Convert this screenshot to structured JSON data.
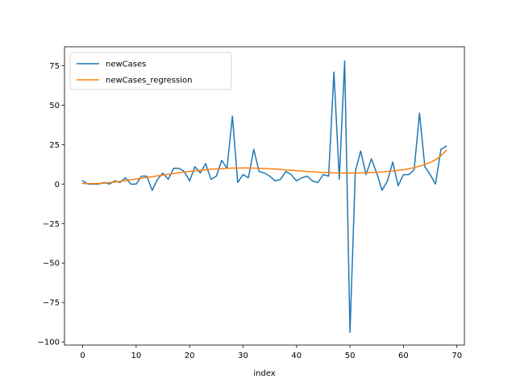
{
  "chart_data": {
    "type": "line",
    "title": "",
    "xlabel": "index",
    "ylabel": "",
    "xlim": [
      -3.4,
      71.4
    ],
    "ylim": [
      -102,
      87
    ],
    "xticks": [
      0,
      10,
      20,
      30,
      40,
      50,
      60,
      70
    ],
    "yticks": [
      -100,
      -75,
      -50,
      -25,
      0,
      25,
      50,
      75
    ],
    "grid": false,
    "legend": "top-left",
    "series": [
      {
        "name": "newCases",
        "color": "#1f77b4",
        "x": [
          0,
          1,
          2,
          3,
          4,
          5,
          6,
          7,
          8,
          9,
          10,
          11,
          12,
          13,
          14,
          15,
          16,
          17,
          18,
          19,
          20,
          21,
          22,
          23,
          24,
          25,
          26,
          27,
          28,
          29,
          30,
          31,
          32,
          33,
          34,
          35,
          36,
          37,
          38,
          39,
          40,
          41,
          42,
          43,
          44,
          45,
          46,
          47,
          48,
          49,
          50,
          51,
          52,
          53,
          54,
          55,
          56,
          57,
          58,
          59,
          60,
          61,
          62,
          63,
          64,
          65,
          66,
          67,
          68
        ],
        "y": [
          2,
          0,
          0,
          0,
          1,
          0,
          2,
          1,
          4,
          0,
          0,
          5,
          5,
          -4,
          3,
          7,
          3,
          10,
          10,
          8,
          2,
          11,
          7,
          13,
          3,
          5,
          15,
          10,
          43,
          1,
          6,
          4,
          22,
          8,
          7,
          5,
          2,
          3,
          8,
          6,
          2,
          4,
          5,
          2,
          1,
          6,
          5,
          71,
          3,
          78,
          -94,
          8,
          21,
          6,
          16,
          7,
          -4,
          2,
          14,
          -1,
          6,
          6,
          9,
          45,
          11,
          6,
          0,
          22,
          24
        ]
      },
      {
        "name": "newCases_regression",
        "color": "#ff7f0e",
        "x": [
          0,
          1,
          2,
          3,
          4,
          5,
          6,
          7,
          8,
          9,
          10,
          11,
          12,
          13,
          14,
          15,
          16,
          17,
          18,
          19,
          20,
          21,
          22,
          23,
          24,
          25,
          26,
          27,
          28,
          29,
          30,
          31,
          32,
          33,
          34,
          35,
          36,
          37,
          38,
          39,
          40,
          41,
          42,
          43,
          44,
          45,
          46,
          47,
          48,
          49,
          50,
          51,
          52,
          53,
          54,
          55,
          56,
          57,
          58,
          59,
          60,
          61,
          62,
          63,
          64,
          65,
          66,
          67,
          68
        ],
        "y": [
          0.4,
          0.3,
          0.3,
          0.4,
          0.6,
          0.9,
          1.3,
          1.7,
          2.2,
          2.7,
          3.2,
          3.7,
          4.2,
          4.7,
          5.2,
          5.7,
          6.2,
          6.7,
          7.2,
          7.6,
          8.0,
          8.4,
          8.8,
          9.1,
          9.4,
          9.6,
          9.8,
          10.0,
          10.1,
          10.2,
          10.2,
          10.2,
          10.1,
          10.0,
          9.9,
          9.7,
          9.5,
          9.3,
          9.0,
          8.8,
          8.5,
          8.3,
          8.0,
          7.8,
          7.6,
          7.4,
          7.3,
          7.1,
          7.0,
          7.0,
          7.0,
          7.0,
          7.1,
          7.2,
          7.3,
          7.5,
          7.7,
          8.0,
          8.3,
          8.7,
          9.1,
          9.7,
          10.4,
          11.3,
          12.4,
          13.7,
          15.4,
          17.8,
          21.3
        ]
      }
    ]
  }
}
